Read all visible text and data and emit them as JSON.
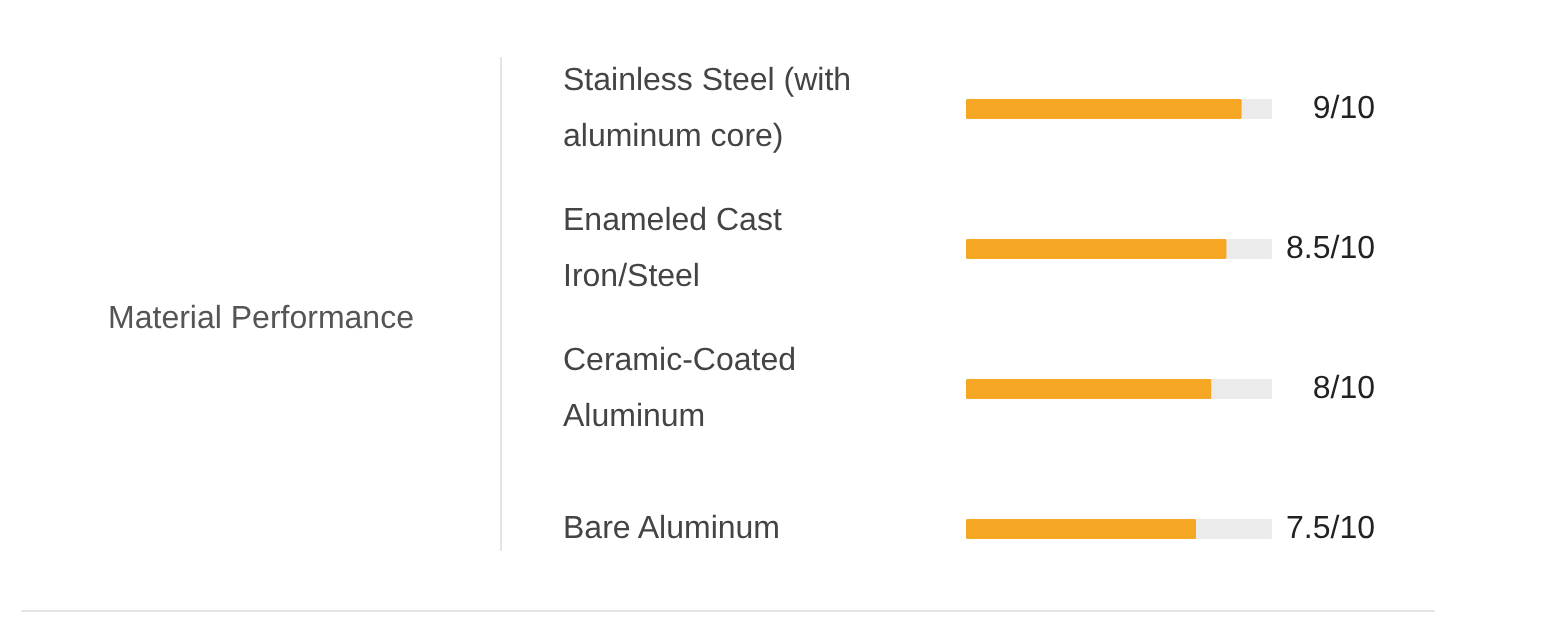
{
  "chart_data": {
    "type": "bar",
    "orientation": "horizontal",
    "title": "Material Performance",
    "categories": [
      "Stainless Steel (with aluminum core)",
      "Enameled Cast Iron/Steel",
      "Ceramic-Coated Aluminum",
      "Bare Aluminum"
    ],
    "values": [
      0.9,
      0.85,
      0.8,
      0.75
    ],
    "value_labels": [
      "9/10",
      "8.5/10",
      "8/10",
      "7.5/10"
    ],
    "color": "#f5a623",
    "xlim": [
      0,
      1
    ],
    "tick_labels": false,
    "grid": false
  }
}
